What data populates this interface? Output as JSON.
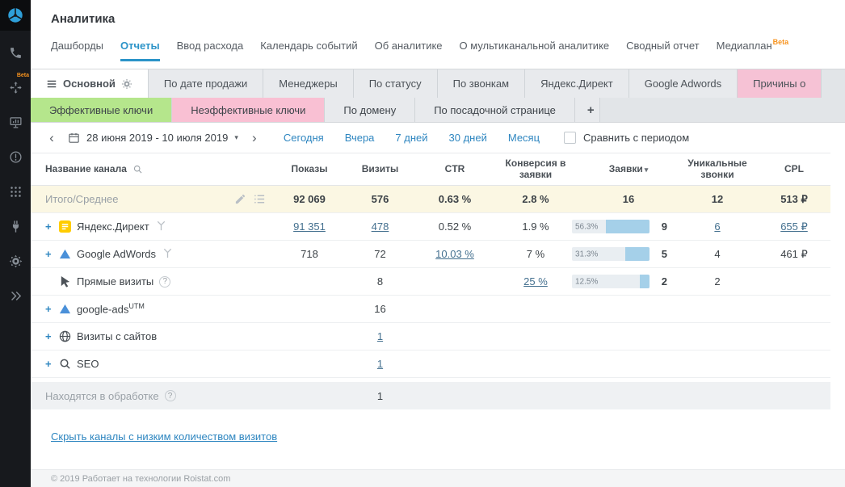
{
  "sidebar": {
    "beta_badge": "Beta"
  },
  "header": {
    "title": "Аналитика",
    "nav": [
      {
        "label": "Дашборды"
      },
      {
        "label": "Отчеты"
      },
      {
        "label": "Ввод расхода"
      },
      {
        "label": "Календарь событий"
      },
      {
        "label": "Об аналитике"
      },
      {
        "label": "О мультиканальной аналитике"
      },
      {
        "label": "Сводный отчет"
      },
      {
        "label": "Медиаплан",
        "badge": "Beta"
      }
    ]
  },
  "report_tabs": [
    {
      "label": "Основной"
    },
    {
      "label": "По дате продажи"
    },
    {
      "label": "Менеджеры"
    },
    {
      "label": "По статусу"
    },
    {
      "label": "По звонкам"
    },
    {
      "label": "Яндекс.Директ"
    },
    {
      "label": "Google Adwords"
    },
    {
      "label": "Причины о"
    }
  ],
  "sub_tabs": [
    {
      "label": "Эффективные ключи"
    },
    {
      "label": "Неэффективные ключи"
    },
    {
      "label": "По домену"
    },
    {
      "label": "По посадочной странице"
    },
    {
      "label": "+"
    }
  ],
  "date_bar": {
    "range": "28 июня 2019 - 10 июля 2019",
    "presets": [
      "Сегодня",
      "Вчера",
      "7 дней",
      "30 дней",
      "Месяц"
    ],
    "compare_label": "Сравнить с периодом"
  },
  "icons": {
    "expand": "+",
    "caret": "▾",
    "prev": "‹",
    "next": "›",
    "help": "?",
    "sort": "▾"
  },
  "table": {
    "columns": [
      "Название канала",
      "Показы",
      "Визиты",
      "CTR",
      "Конверсия в заявки",
      "Заявки",
      "Уникальные звонки",
      "CPL"
    ],
    "rows": [
      {
        "name": "Итого/Среднее",
        "shows": "92 069",
        "visits": "576",
        "ctr": "0.63 %",
        "conversion": "2.8 %",
        "leads": "16",
        "calls": "12",
        "cpl": "513 ₽"
      },
      {
        "name": "Яндекс.Директ",
        "shows": "91 351",
        "visits": "478",
        "ctr": "0.52 %",
        "conversion": "1.9 %",
        "leads": "9",
        "leads_pct": "56.3%",
        "calls": "6",
        "cpl": "655 ₽"
      },
      {
        "name": "Google AdWords",
        "shows": "718",
        "visits": "72",
        "ctr": "10.03 %",
        "conversion": "7 %",
        "leads": "5",
        "leads_pct": "31.3%",
        "calls": "4",
        "cpl": "461 ₽"
      },
      {
        "name": "Прямые визиты",
        "visits": "8",
        "conversion": "25 %",
        "leads": "2",
        "leads_pct": "12.5%",
        "calls": "2"
      },
      {
        "name": "google-ads",
        "name_sup": "UTM",
        "visits": "16"
      },
      {
        "name": "Визиты с сайтов",
        "visits": "1"
      },
      {
        "name": "SEO",
        "visits": "1"
      },
      {
        "name": "Находятся в обработке",
        "visits": "1"
      }
    ]
  },
  "hide_link": "Скрыть каналы с низким количеством визитов",
  "footer": "© 2019 Работает на технологии Roistat.com"
}
